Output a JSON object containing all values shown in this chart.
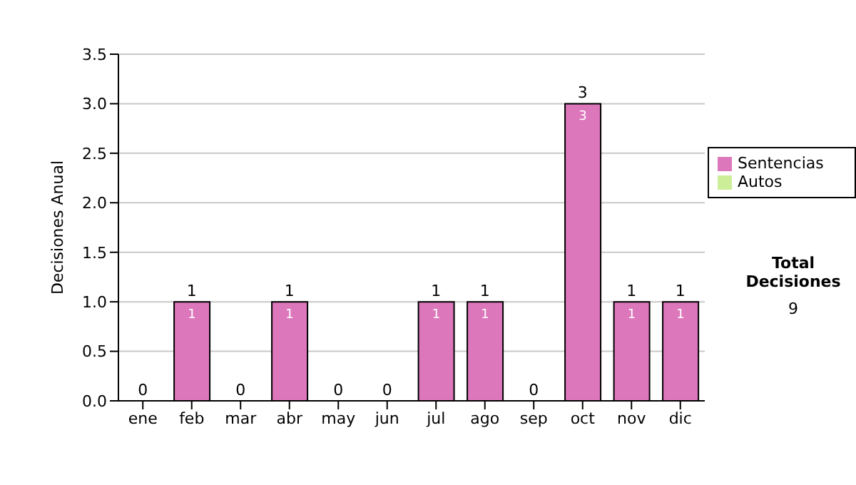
{
  "chart_data": {
    "type": "bar",
    "stacked": true,
    "ylabel": "Decisiones Anual",
    "categories": [
      "ene",
      "feb",
      "mar",
      "abr",
      "may",
      "jun",
      "jul",
      "ago",
      "sep",
      "oct",
      "nov",
      "dic"
    ],
    "series": [
      {
        "name": "Sentencias",
        "color": "#dd77bb",
        "values": [
          0,
          1,
          0,
          1,
          0,
          0,
          1,
          1,
          0,
          3,
          1,
          1
        ],
        "value_labels": [
          null,
          "1",
          null,
          "1",
          null,
          null,
          "1",
          "1",
          null,
          "3",
          "1",
          "1"
        ]
      },
      {
        "name": "Autos",
        "color": "#ccee99",
        "values": [
          0,
          0,
          0,
          0,
          0,
          0,
          0,
          0,
          0,
          0,
          0,
          0
        ]
      }
    ],
    "totals": [
      "0",
      "1",
      "0",
      "1",
      "0",
      "0",
      "1",
      "1",
      "0",
      "3",
      "1",
      "1"
    ],
    "ylim": [
      0,
      3.5
    ],
    "yticks": [
      {
        "value": 0,
        "label": "0.0"
      },
      {
        "value": 0.5,
        "label": "0.5"
      },
      {
        "value": 1,
        "label": "1.0"
      },
      {
        "value": 1.5,
        "label": "1.5"
      },
      {
        "value": 2,
        "label": "2.0"
      },
      {
        "value": 2.5,
        "label": "2.5"
      },
      {
        "value": 3,
        "label": "3.0"
      },
      {
        "value": 3.5,
        "label": "3.5"
      }
    ],
    "grid": "y",
    "legend": "right",
    "annotations": [
      "Total Decisiones",
      "9"
    ]
  }
}
